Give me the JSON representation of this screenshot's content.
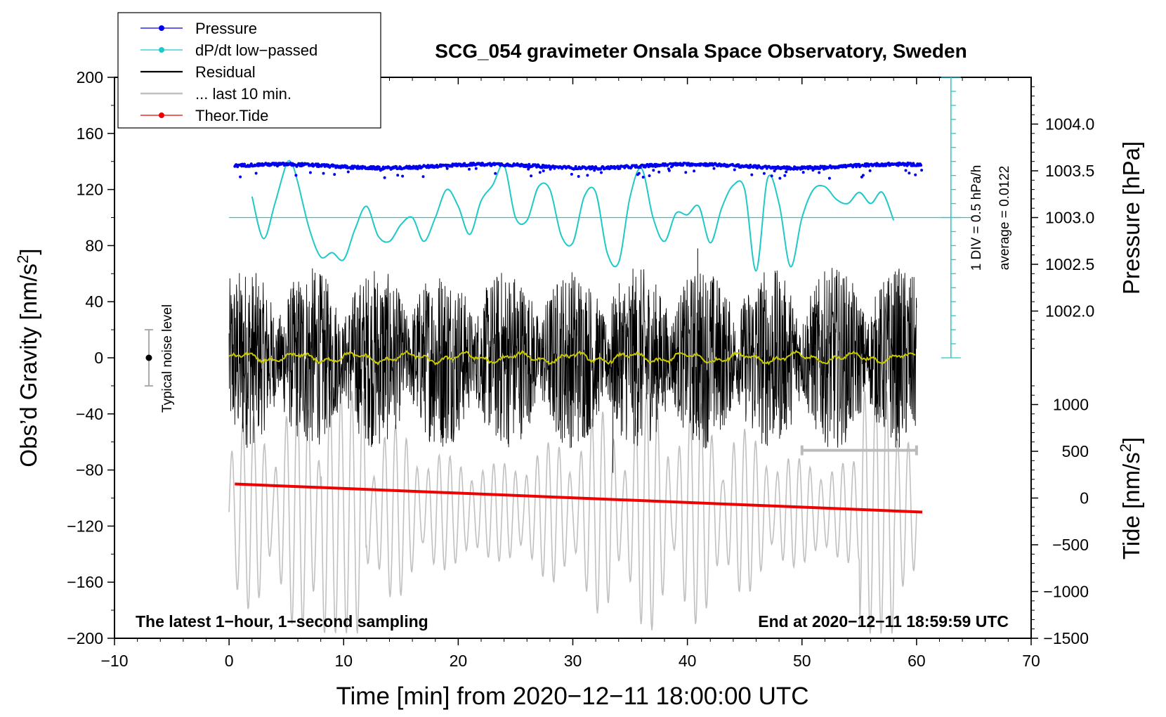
{
  "chart_data": {
    "type": "line",
    "title": "SCG_054 gravimeter Onsala Space Observatory, Sweden",
    "xlabel": "Time [min] from 2020−12−11 18:00:00 UTC",
    "ylabel_left": "Obs’d Gravity [nm/s",
    "ylabel_left_sup": "2",
    "ylabel_left_end": "]",
    "ylabel_pressure": "Pressure [hPa]",
    "ylabel_tide": "Tide [nm/s",
    "ylabel_tide_sup": "2",
    "ylabel_tide_end": "]",
    "xlim": [
      -10,
      70
    ],
    "ylim": [
      -200,
      200
    ],
    "x_ticks": [
      {
        "value": -10,
        "label": "−10"
      },
      {
        "value": 0,
        "label": "0"
      },
      {
        "value": 10,
        "label": "10"
      },
      {
        "value": 20,
        "label": "20"
      },
      {
        "value": 30,
        "label": "30"
      },
      {
        "value": 40,
        "label": "40"
      },
      {
        "value": 50,
        "label": "50"
      },
      {
        "value": 60,
        "label": "60"
      },
      {
        "value": 70,
        "label": "70"
      }
    ],
    "y_ticks": [
      {
        "value": 200,
        "label": "200"
      },
      {
        "value": 160,
        "label": "160"
      },
      {
        "value": 120,
        "label": "120"
      },
      {
        "value": 80,
        "label": "80"
      },
      {
        "value": 40,
        "label": "40"
      },
      {
        "value": 0,
        "label": "0"
      },
      {
        "value": -40,
        "label": "−40"
      },
      {
        "value": -80,
        "label": "−80"
      },
      {
        "value": -120,
        "label": "−120"
      },
      {
        "value": -160,
        "label": "−160"
      },
      {
        "value": -200,
        "label": "−200"
      }
    ],
    "pressure_axis": {
      "ticks": [
        {
          "value": 1004.0,
          "label": "1004.0"
        },
        {
          "value": 1003.5,
          "label": "1003.5"
        },
        {
          "value": 1003.0,
          "label": "1003.0"
        },
        {
          "value": 1002.5,
          "label": "1002.5"
        },
        {
          "value": 1002.0,
          "label": "1002.0"
        }
      ],
      "pressure_at_gravity_0": 1001.5,
      "pressure_at_gravity_200": 1004.5
    },
    "tide_axis": {
      "ticks": [
        {
          "value": 1000,
          "label": "1000"
        },
        {
          "value": 500,
          "label": "500"
        },
        {
          "value": 0,
          "label": "0"
        },
        {
          "value": -500,
          "label": "−500"
        },
        {
          "value": -1000,
          "label": "−1000"
        },
        {
          "value": -1500,
          "label": "−1500"
        }
      ],
      "tide_at_gravity_minus200": -1500,
      "tide_at_gravity_0": 1500
    },
    "dpdt_axis": {
      "baseline_gravity": 100,
      "ticks_from_gravity": 0,
      "ticks_to_gravity": 200,
      "tick_step_gravity": 10,
      "x_position": 63,
      "label": "1 DIV = 0.5 hPa/h",
      "average_label": "average = 0.0122"
    },
    "legend": [
      {
        "name": "Pressure",
        "color": "#0000ee",
        "marker": "dot"
      },
      {
        "name": "dP/dt low−passed",
        "color": "#20c8c8",
        "marker": "dot"
      },
      {
        "name": "Residual",
        "color": "#000000",
        "marker": "none"
      },
      {
        "name": "... last 10 min.",
        "color": "#c0c0c0",
        "marker": "none"
      },
      {
        "name": "Theor.Tide",
        "color": "#ee0000",
        "marker": "dot"
      }
    ],
    "noise_level": {
      "x": -7,
      "y": 0,
      "low": -20,
      "high": 20,
      "label": "Typical noise level"
    },
    "last10_bar": {
      "x0": 50,
      "x1": 60,
      "y": -66
    },
    "annotation_left": "The latest 1−hour, 1−second sampling",
    "annotation_right": "End at 2020−12−11 18:59:59 UTC",
    "series": [
      {
        "name": "Pressure",
        "axis": "pressure",
        "color": "#0000ee",
        "x_range": [
          0.5,
          60.5
        ],
        "approx_mean": 1003.55,
        "approx_min": 1003.4,
        "approx_max": 1003.6
      },
      {
        "name": "dP/dt low−passed",
        "color": "#20c8c8",
        "axis": "gravity",
        "x": [
          2,
          3,
          4,
          5,
          5.5,
          6,
          7,
          8,
          9,
          10,
          11,
          12,
          13,
          14,
          15,
          16,
          17,
          18,
          19,
          20,
          21,
          22,
          23,
          24,
          25,
          26,
          27,
          28,
          29,
          30,
          31,
          32,
          33,
          34,
          35,
          36,
          37,
          38,
          39,
          40,
          41,
          42,
          43,
          44,
          45,
          46,
          47,
          48,
          49,
          50,
          51,
          52,
          53,
          54,
          55,
          56,
          57,
          58
        ],
        "y": [
          115,
          85,
          110,
          138,
          138,
          125,
          92,
          72,
          75,
          70,
          92,
          108,
          87,
          83,
          95,
          100,
          83,
          100,
          120,
          108,
          88,
          112,
          123,
          137,
          100,
          98,
          122,
          120,
          87,
          82,
          115,
          118,
          75,
          68,
          115,
          135,
          100,
          83,
          103,
          102,
          108,
          82,
          107,
          123,
          120,
          62,
          128,
          110,
          65,
          100,
          120,
          122,
          113,
          110,
          118,
          110,
          118,
          98
        ]
      },
      {
        "name": "Residual",
        "color": "#000000",
        "axis": "gravity",
        "x_range": [
          0,
          60
        ],
        "approx_amplitude": 65,
        "extremes": {
          "max": 78,
          "min": -82
        }
      },
      {
        "name": "Residual smoothed",
        "color": "#c8c800",
        "axis": "gravity",
        "x_range": [
          0,
          60
        ],
        "approx_mean": 0,
        "approx_amplitude": 5
      },
      {
        "name": "... last 10 min.",
        "color": "#c0c0c0",
        "axis": "tide",
        "x_range": [
          0,
          60
        ],
        "approx_amplitude": 1300
      },
      {
        "name": "Theor.Tide",
        "color": "#ee0000",
        "axis": "gravity",
        "x": [
          0.5,
          60.5
        ],
        "y": [
          -90,
          -110
        ]
      }
    ]
  }
}
